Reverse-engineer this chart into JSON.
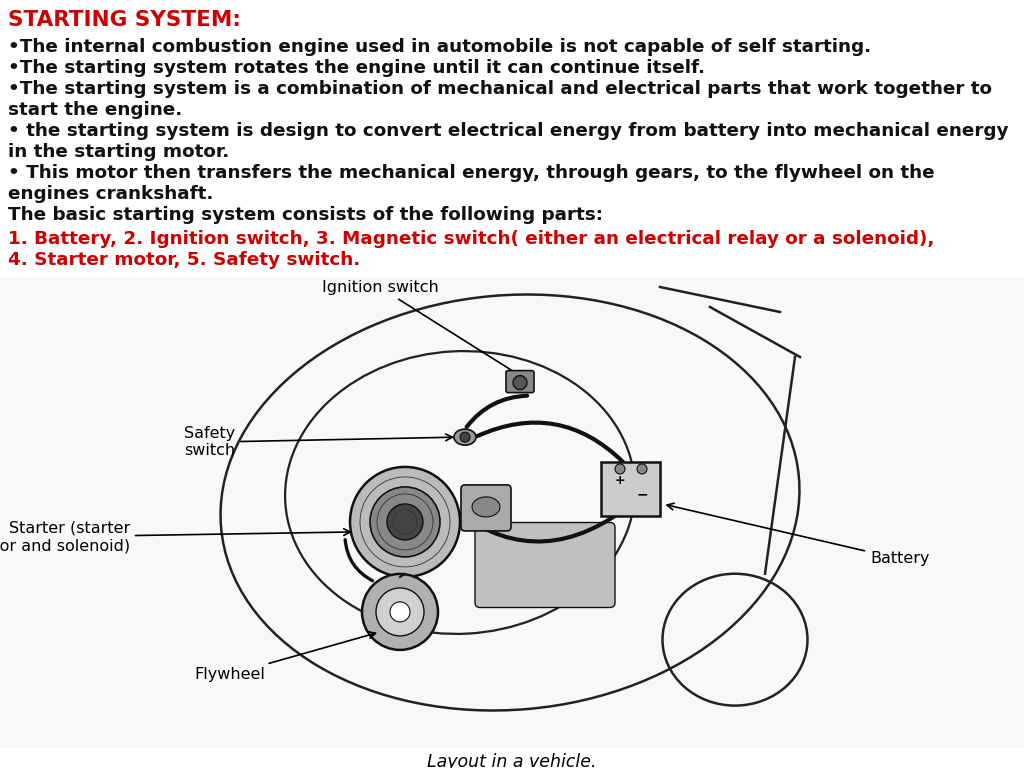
{
  "title": "STARTING SYSTEM:",
  "title_color": "#cc0000",
  "title_fontsize": 15.5,
  "body_fontsize": 13.2,
  "body_color": "#111111",
  "red_color": "#cc0000",
  "background_color": "#ffffff",
  "bullet_lines": [
    "•The internal combustion engine used in automobile is not capable of self starting.",
    "•The starting system rotates the engine until it can continue itself.",
    "•The starting system is a combination of mechanical and electrical parts that work together to",
    "start the engine.",
    "• the starting system is design to convert electrical energy from battery into mechanical energy",
    "in the starting motor.",
    "• This motor then transfers the mechanical energy, through gears, to the flywheel on the",
    "engines crankshaft.",
    "The basic starting system consists of the following parts:"
  ],
  "red_line1": "1. Battery, 2. Ignition switch, 3. Magnetic switch( either an electrical relay or a solenoid),",
  "red_line2": "4. Starter motor, 5. Safety switch.",
  "diagram_caption": "Layout in a vehicle.",
  "label_ignition": "Ignition switch",
  "label_safety_line1": "Safety",
  "label_safety_line2": "switch",
  "label_starter_line1": "Starter (starter",
  "label_starter_line2": "motor and solenoid)",
  "label_flywheel": "Flywheel",
  "label_battery": "Battery",
  "diagram_bg": "#e8e8e8"
}
